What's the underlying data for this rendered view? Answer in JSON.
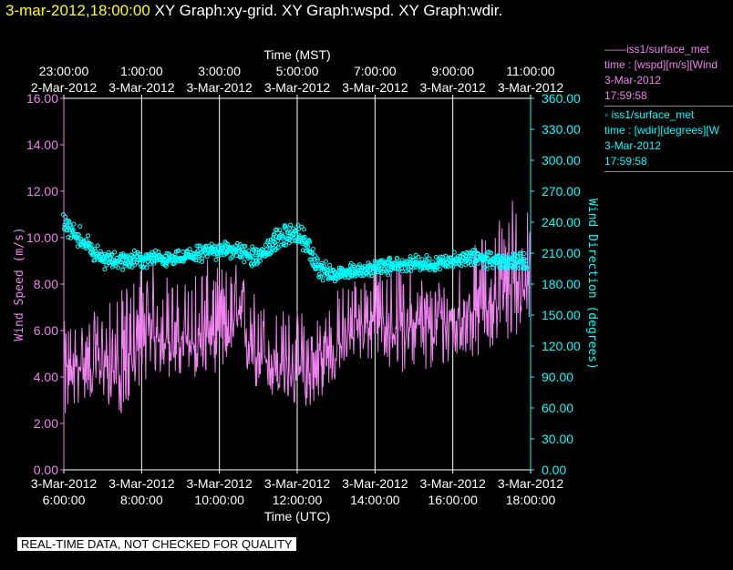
{
  "header": {
    "timestamp": "3-mar-2012,18:00:00",
    "graphs": " XY Graph:xy-grid.  XY Graph:wspd.  XY Graph:wdir."
  },
  "legend": {
    "wspd": {
      "line1": "——iss1/surface_met",
      "line2": "time : [wspd][m/s][Wind",
      "line3": "3-Mar-2012",
      "line4": "17:59:58"
    },
    "wdir": {
      "line1": "◦  iss1/surface_met",
      "line2": "time : [wdir][degrees][W",
      "line3": "3-Mar-2012",
      "line4": "17:59:58"
    }
  },
  "banner": "REAL-TIME DATA, NOT CHECKED FOR QUALITY",
  "colors": {
    "wspd": "#ee82ee",
    "wdir": "#00ffff",
    "grid": "#ffffff",
    "background": "#000000",
    "timestamp": "#ffff00"
  },
  "chart_data": {
    "type": "line",
    "xlabel_bottom": "Time (UTC)",
    "xlabel_top": "Time (MST)",
    "xlim_utc_hours": [
      6,
      18
    ],
    "bottom_ticks": [
      {
        "t": 6,
        "date": "3-Mar-2012",
        "time": "6:00:00"
      },
      {
        "t": 8,
        "date": "3-Mar-2012",
        "time": "8:00:00"
      },
      {
        "t": 10,
        "date": "3-Mar-2012",
        "time": "10:00:00"
      },
      {
        "t": 12,
        "date": "3-Mar-2012",
        "time": "12:00:00"
      },
      {
        "t": 14,
        "date": "3-Mar-2012",
        "time": "14:00:00"
      },
      {
        "t": 16,
        "date": "3-Mar-2012",
        "time": "16:00:00"
      },
      {
        "t": 18,
        "date": "3-Mar-2012",
        "time": "18:00:00"
      }
    ],
    "top_ticks": [
      {
        "t": 6,
        "time": "23:00:00",
        "date": "2-Mar-2012"
      },
      {
        "t": 8,
        "time": "1:00:00",
        "date": "3-Mar-2012"
      },
      {
        "t": 10,
        "time": "3:00:00",
        "date": "3-Mar-2012"
      },
      {
        "t": 12,
        "time": "5:00:00",
        "date": "3-Mar-2012"
      },
      {
        "t": 14,
        "time": "7:00:00",
        "date": "3-Mar-2012"
      },
      {
        "t": 16,
        "time": "9:00:00",
        "date": "3-Mar-2012"
      },
      {
        "t": 18,
        "time": "11:00:00",
        "date": "3-Mar-2012"
      }
    ],
    "grid_x": true,
    "left_axis": {
      "label": "Wind Speed (m/s)",
      "ylim": [
        0,
        16
      ],
      "ticks": [
        "0.00",
        "2.00",
        "4.00",
        "6.00",
        "8.00",
        "10.00",
        "12.00",
        "14.00",
        "16.00"
      ]
    },
    "right_axis": {
      "label": "Wind Direction (degrees)",
      "ylim": [
        0,
        360
      ],
      "ticks": [
        "0.00",
        "30.00",
        "60.00",
        "90.00",
        "120.00",
        "150.00",
        "180.00",
        "210.00",
        "240.00",
        "270.00",
        "300.00",
        "330.00",
        "360.00"
      ]
    },
    "series": [
      {
        "name": "iss1/surface_met time : [wspd][m/s]",
        "axis": "left",
        "style": "line",
        "x": [
          6.0,
          6.5,
          7.0,
          7.5,
          8.0,
          8.5,
          9.0,
          9.5,
          10.0,
          10.5,
          11.0,
          11.5,
          12.0,
          12.5,
          13.0,
          13.5,
          14.0,
          14.5,
          15.0,
          15.5,
          16.0,
          16.5,
          17.0,
          17.5,
          18.0
        ],
        "y": [
          4.2,
          4.5,
          4.6,
          4.0,
          5.5,
          5.8,
          5.3,
          5.5,
          6.0,
          6.3,
          5.0,
          4.4,
          4.0,
          4.3,
          5.2,
          6.2,
          6.4,
          6.0,
          6.3,
          6.0,
          6.4,
          6.8,
          7.2,
          8.0,
          8.3
        ],
        "range_low": [
          2.0,
          3.0,
          3.0,
          2.3,
          3.8,
          4.0,
          3.8,
          4.0,
          4.2,
          4.5,
          3.2,
          2.9,
          2.6,
          2.8,
          3.8,
          4.8,
          4.5,
          4.2,
          4.2,
          4.0,
          4.6,
          4.8,
          5.2,
          5.5,
          6.5
        ],
        "range_high": [
          6.4,
          6.6,
          7.0,
          7.8,
          9.0,
          8.8,
          8.0,
          9.2,
          8.8,
          9.0,
          7.5,
          7.0,
          7.0,
          7.0,
          7.8,
          8.5,
          9.0,
          9.2,
          8.8,
          8.2,
          8.8,
          9.6,
          10.5,
          12.0,
          11.2
        ]
      },
      {
        "name": "iss1/surface_met time : [wdir][degrees]",
        "axis": "right",
        "style": "markers",
        "x": [
          6.0,
          6.25,
          6.5,
          6.75,
          7.0,
          7.5,
          8.0,
          8.5,
          9.0,
          9.5,
          10.0,
          10.5,
          11.0,
          11.5,
          11.9,
          12.2,
          12.5,
          13.0,
          13.5,
          14.0,
          14.5,
          15.0,
          15.5,
          16.0,
          16.5,
          17.0,
          17.5,
          17.9
        ],
        "y": [
          238,
          228,
          222,
          212,
          204,
          202,
          204,
          204,
          205,
          210,
          214,
          212,
          205,
          225,
          228,
          222,
          196,
          188,
          193,
          196,
          198,
          200,
          200,
          203,
          205,
          203,
          202,
          200
        ],
        "spread": [
          12,
          14,
          13,
          12,
          10,
          10,
          10,
          9,
          9,
          10,
          11,
          10,
          11,
          13,
          12,
          13,
          12,
          9,
          9,
          9,
          9,
          9,
          9,
          9,
          9,
          9,
          10,
          12
        ]
      }
    ]
  }
}
